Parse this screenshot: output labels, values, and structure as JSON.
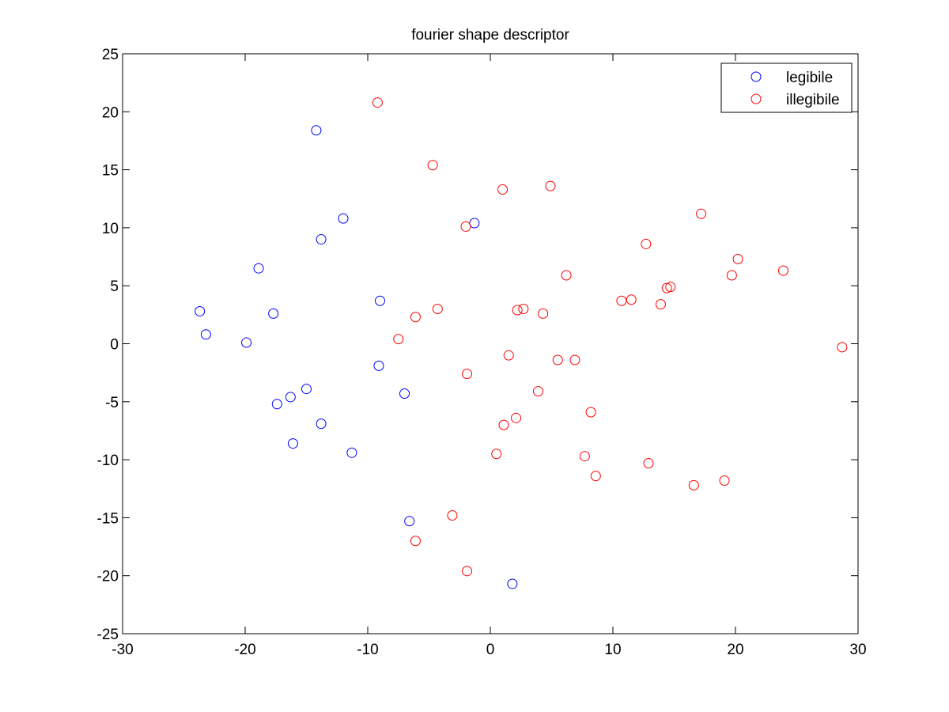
{
  "chart_data": {
    "type": "scatter",
    "title": "fourier shape descriptor",
    "xlabel": "",
    "ylabel": "",
    "xlim": [
      -30,
      30
    ],
    "ylim": [
      -25,
      25
    ],
    "xticks": [
      -30,
      -20,
      -10,
      0,
      10,
      20,
      30
    ],
    "yticks": [
      -25,
      -20,
      -15,
      -10,
      -5,
      0,
      5,
      10,
      15,
      20,
      25
    ],
    "marker": "open-circle",
    "grid": false,
    "legend_position": "top-right",
    "series": [
      {
        "name": "legibile",
        "color": "#0000ff",
        "points": [
          [
            -14.2,
            18.4
          ],
          [
            -12.0,
            10.8
          ],
          [
            -13.8,
            9.0
          ],
          [
            -1.3,
            10.4
          ],
          [
            -18.9,
            6.5
          ],
          [
            -23.7,
            2.8
          ],
          [
            -17.7,
            2.6
          ],
          [
            -9.0,
            3.7
          ],
          [
            -23.2,
            0.8
          ],
          [
            -19.9,
            0.1
          ],
          [
            -9.1,
            -1.9
          ],
          [
            -15.0,
            -3.9
          ],
          [
            -16.3,
            -4.6
          ],
          [
            -17.4,
            -5.2
          ],
          [
            -7.0,
            -4.3
          ],
          [
            -13.8,
            -6.9
          ],
          [
            -16.1,
            -8.6
          ],
          [
            -11.3,
            -9.4
          ],
          [
            -6.6,
            -15.3
          ],
          [
            1.8,
            -20.7
          ]
        ]
      },
      {
        "name": "illegibile",
        "color": "#ff0000",
        "points": [
          [
            -9.2,
            20.8
          ],
          [
            -4.7,
            15.4
          ],
          [
            1.0,
            13.3
          ],
          [
            4.9,
            13.6
          ],
          [
            -2.0,
            10.1
          ],
          [
            17.2,
            11.2
          ],
          [
            12.7,
            8.6
          ],
          [
            20.2,
            7.3
          ],
          [
            6.2,
            5.9
          ],
          [
            19.7,
            5.9
          ],
          [
            23.9,
            6.3
          ],
          [
            14.7,
            4.9
          ],
          [
            14.4,
            4.8
          ],
          [
            10.7,
            3.7
          ],
          [
            11.5,
            3.8
          ],
          [
            13.9,
            3.4
          ],
          [
            -4.3,
            3.0
          ],
          [
            -6.1,
            2.3
          ],
          [
            2.2,
            2.9
          ],
          [
            2.7,
            3.0
          ],
          [
            4.3,
            2.6
          ],
          [
            -7.5,
            0.4
          ],
          [
            1.5,
            -1.0
          ],
          [
            5.5,
            -1.4
          ],
          [
            6.9,
            -1.4
          ],
          [
            28.7,
            -0.3
          ],
          [
            -1.9,
            -2.6
          ],
          [
            3.9,
            -4.1
          ],
          [
            8.2,
            -5.9
          ],
          [
            2.1,
            -6.4
          ],
          [
            1.1,
            -7.0
          ],
          [
            0.5,
            -9.5
          ],
          [
            7.7,
            -9.7
          ],
          [
            12.9,
            -10.3
          ],
          [
            8.6,
            -11.4
          ],
          [
            19.1,
            -11.8
          ],
          [
            16.6,
            -12.2
          ],
          [
            -3.1,
            -14.8
          ],
          [
            -6.1,
            -17.0
          ],
          [
            -1.9,
            -19.6
          ]
        ]
      }
    ]
  }
}
